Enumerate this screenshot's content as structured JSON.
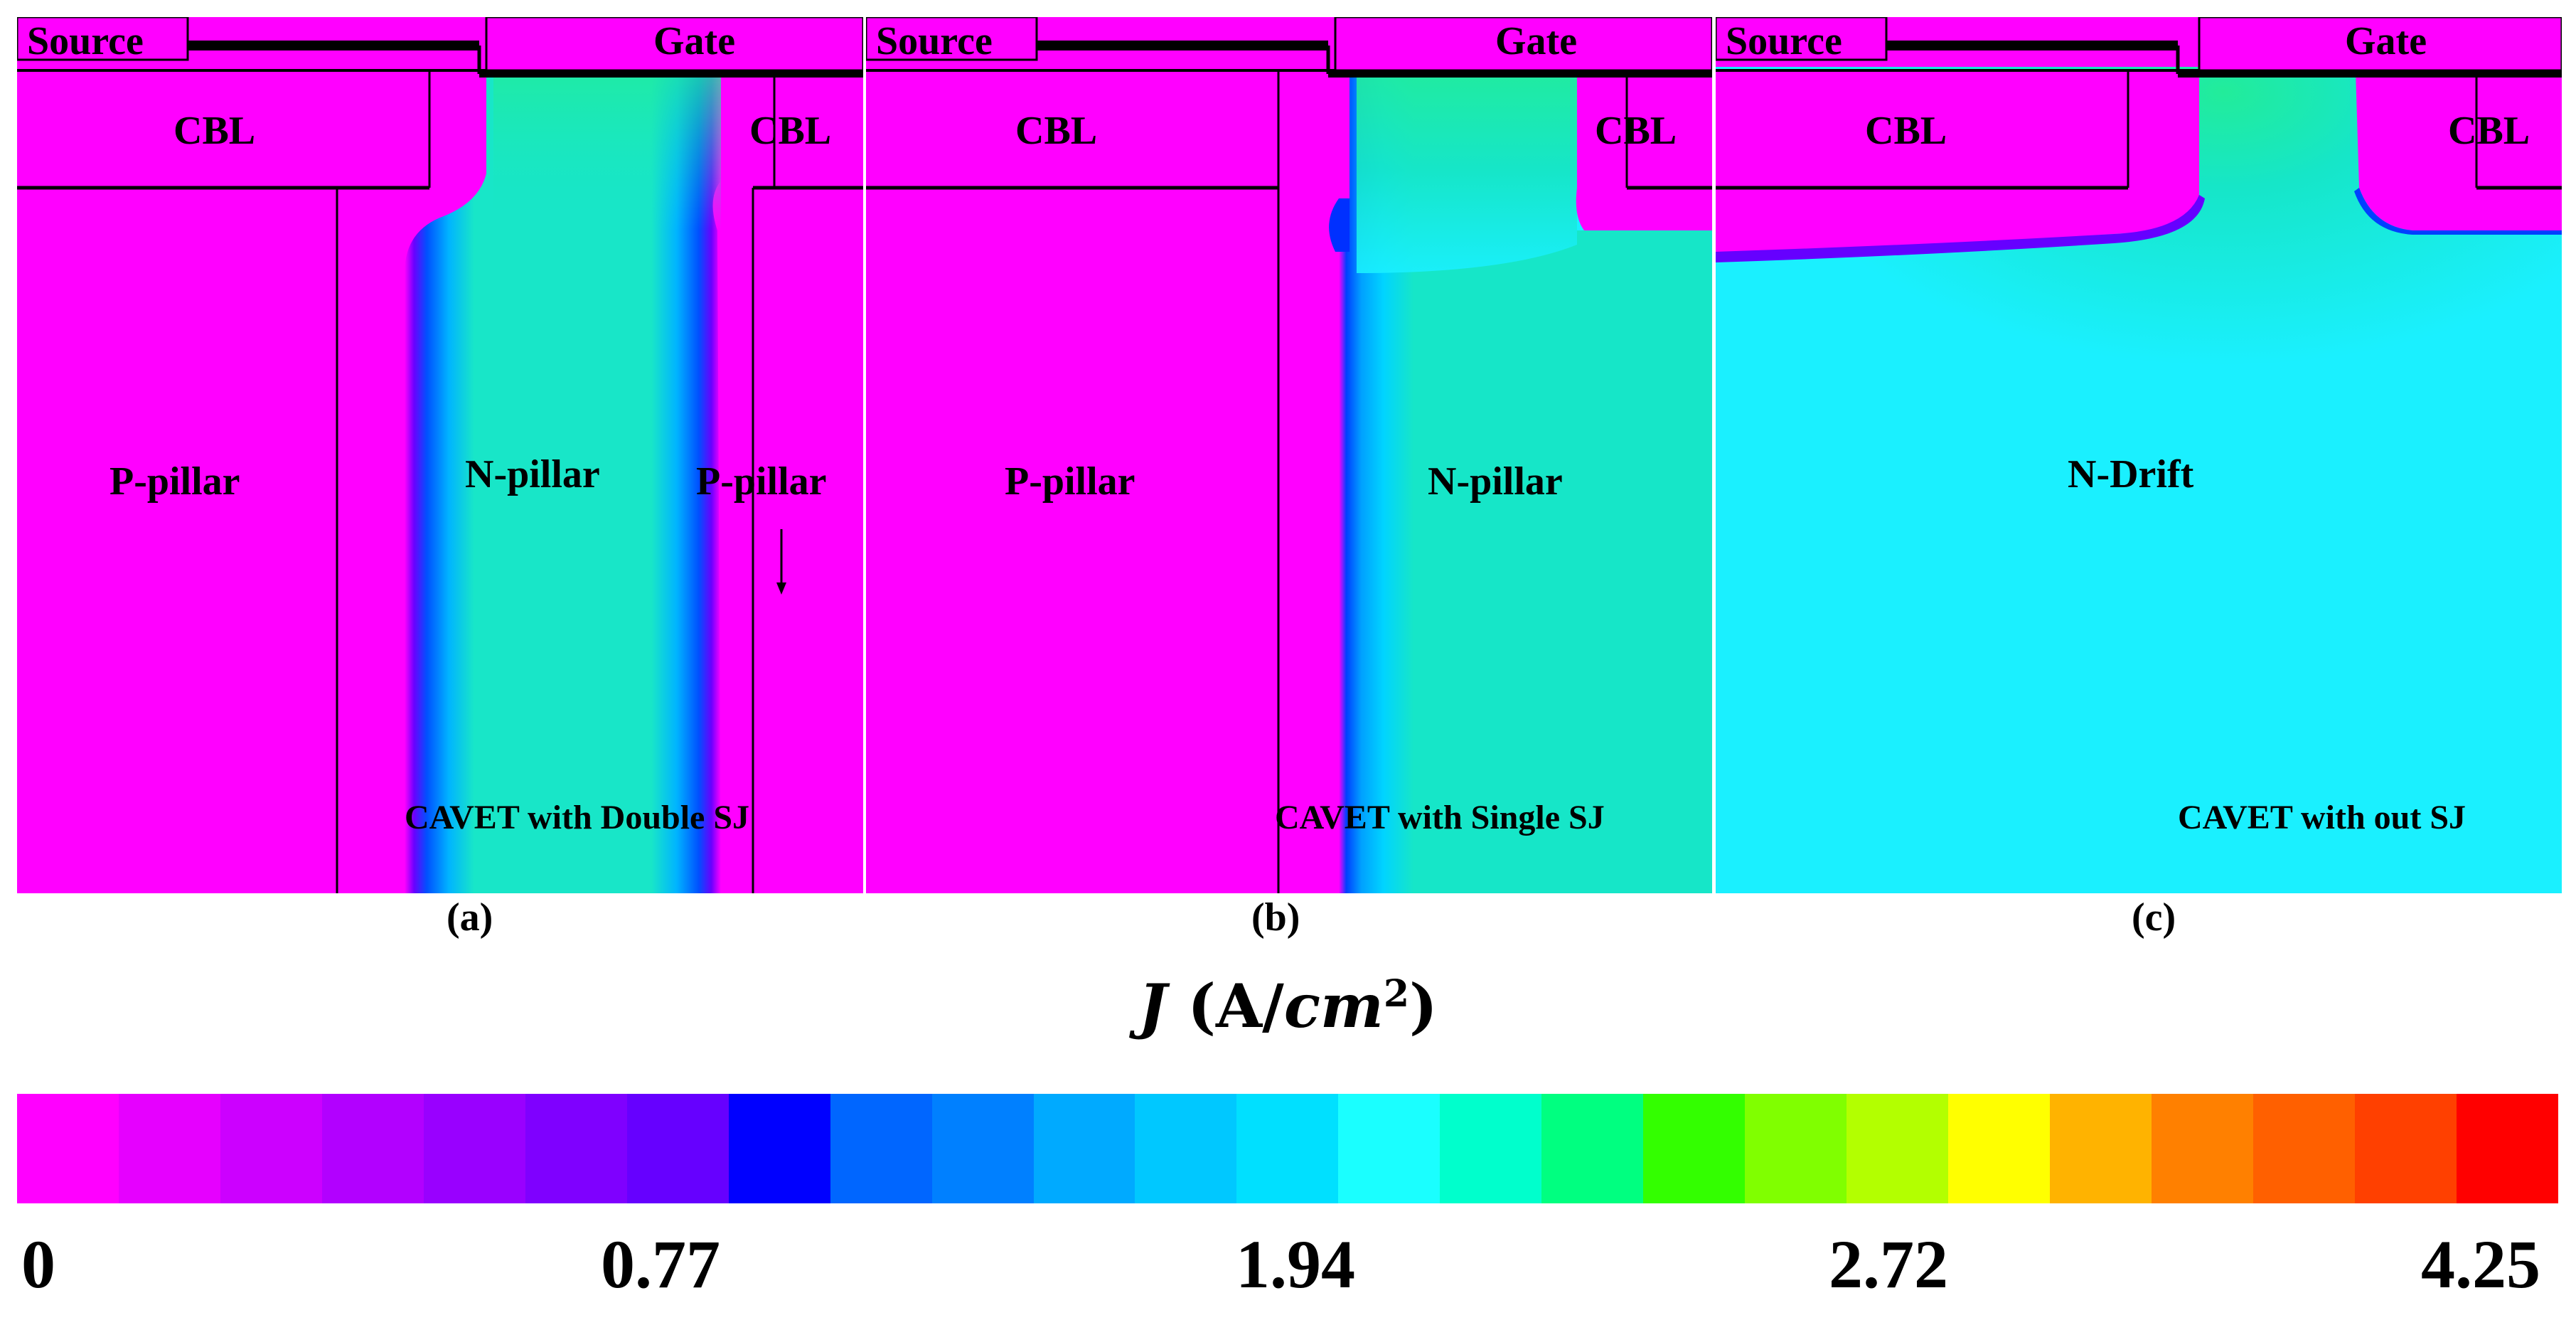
{
  "colors": {
    "magenta": "#ff00ff",
    "cyan": "#1af0ff",
    "green": "#22ec9a",
    "teal": "#16e6c8",
    "blue": "#1f5bff",
    "scale": [
      "#ff00ff",
      "#e600ff",
      "#cc00ff",
      "#b200ff",
      "#9900ff",
      "#7f00ff",
      "#6600ff",
      "#0000ff",
      "#0066ff",
      "#0080ff",
      "#00aaff",
      "#00c8ff",
      "#00e0ff",
      "#1affff",
      "#00ffcc",
      "#00ff80",
      "#33ff00",
      "#80ff00",
      "#b3ff00",
      "#ffff00",
      "#ffb300",
      "#ff8000",
      "#ff6000",
      "#ff4000",
      "#ff0000"
    ]
  },
  "panels": [
    {
      "source": "Source",
      "gate": "Gate",
      "cbl_left": "CBL",
      "cbl_right": "CBL",
      "region_left": "P-pillar",
      "region_mid": "N-pillar",
      "region_right": "P-pillar",
      "caption": "CAVET with Double SJ",
      "sublabel": "(a)"
    },
    {
      "source": "Source",
      "gate": "Gate",
      "cbl_left": "CBL",
      "cbl_right": "CBL",
      "region_left": "P-pillar",
      "region_mid": "N-pillar",
      "caption": "CAVET with Single SJ",
      "sublabel": "(b)"
    },
    {
      "source": "Source",
      "gate": "Gate",
      "cbl_left": "CBL",
      "cbl_right": "CBL",
      "region_mid": "N-Drift",
      "caption": "CAVET with out SJ",
      "sublabel": "(c)"
    }
  ],
  "colorbar": {
    "title_var": "J",
    "title_unit_a": "(A/",
    "title_unit_b": "cm",
    "title_exp": "2",
    "title_close": ")",
    "ticks": [
      "0",
      "0.77",
      "1.94",
      "2.72",
      "4.25"
    ]
  }
}
